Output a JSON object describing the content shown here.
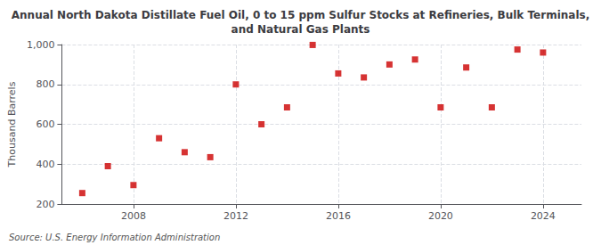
{
  "chart_data": {
    "type": "scatter",
    "title": "Annual North Dakota Distillate Fuel Oil, 0 to 15 ppm Sulfur Stocks at Refineries, Bulk Terminals,\nand Natural Gas Plants",
    "ylabel": "Thousand Barrels",
    "source": "Source: U.S. Energy Information Administration",
    "x": [
      2006,
      2007,
      2008,
      2009,
      2010,
      2011,
      2012,
      2013,
      2014,
      2015,
      2016,
      2017,
      2018,
      2019,
      2020,
      2021,
      2022,
      2023,
      2024
    ],
    "values": [
      255,
      390,
      295,
      530,
      460,
      435,
      800,
      600,
      685,
      998,
      855,
      835,
      900,
      925,
      685,
      885,
      685,
      975,
      960
    ],
    "color": "#cc0000",
    "marker": "square",
    "grid": true,
    "xlim": [
      2005.2,
      2025.5
    ],
    "xticks": [
      2008,
      2012,
      2016,
      2020,
      2024
    ],
    "ylim": [
      200,
      1000
    ],
    "yticks": [
      200,
      400,
      600,
      800,
      {
        "value": 1000,
        "label": "1,000"
      }
    ]
  }
}
